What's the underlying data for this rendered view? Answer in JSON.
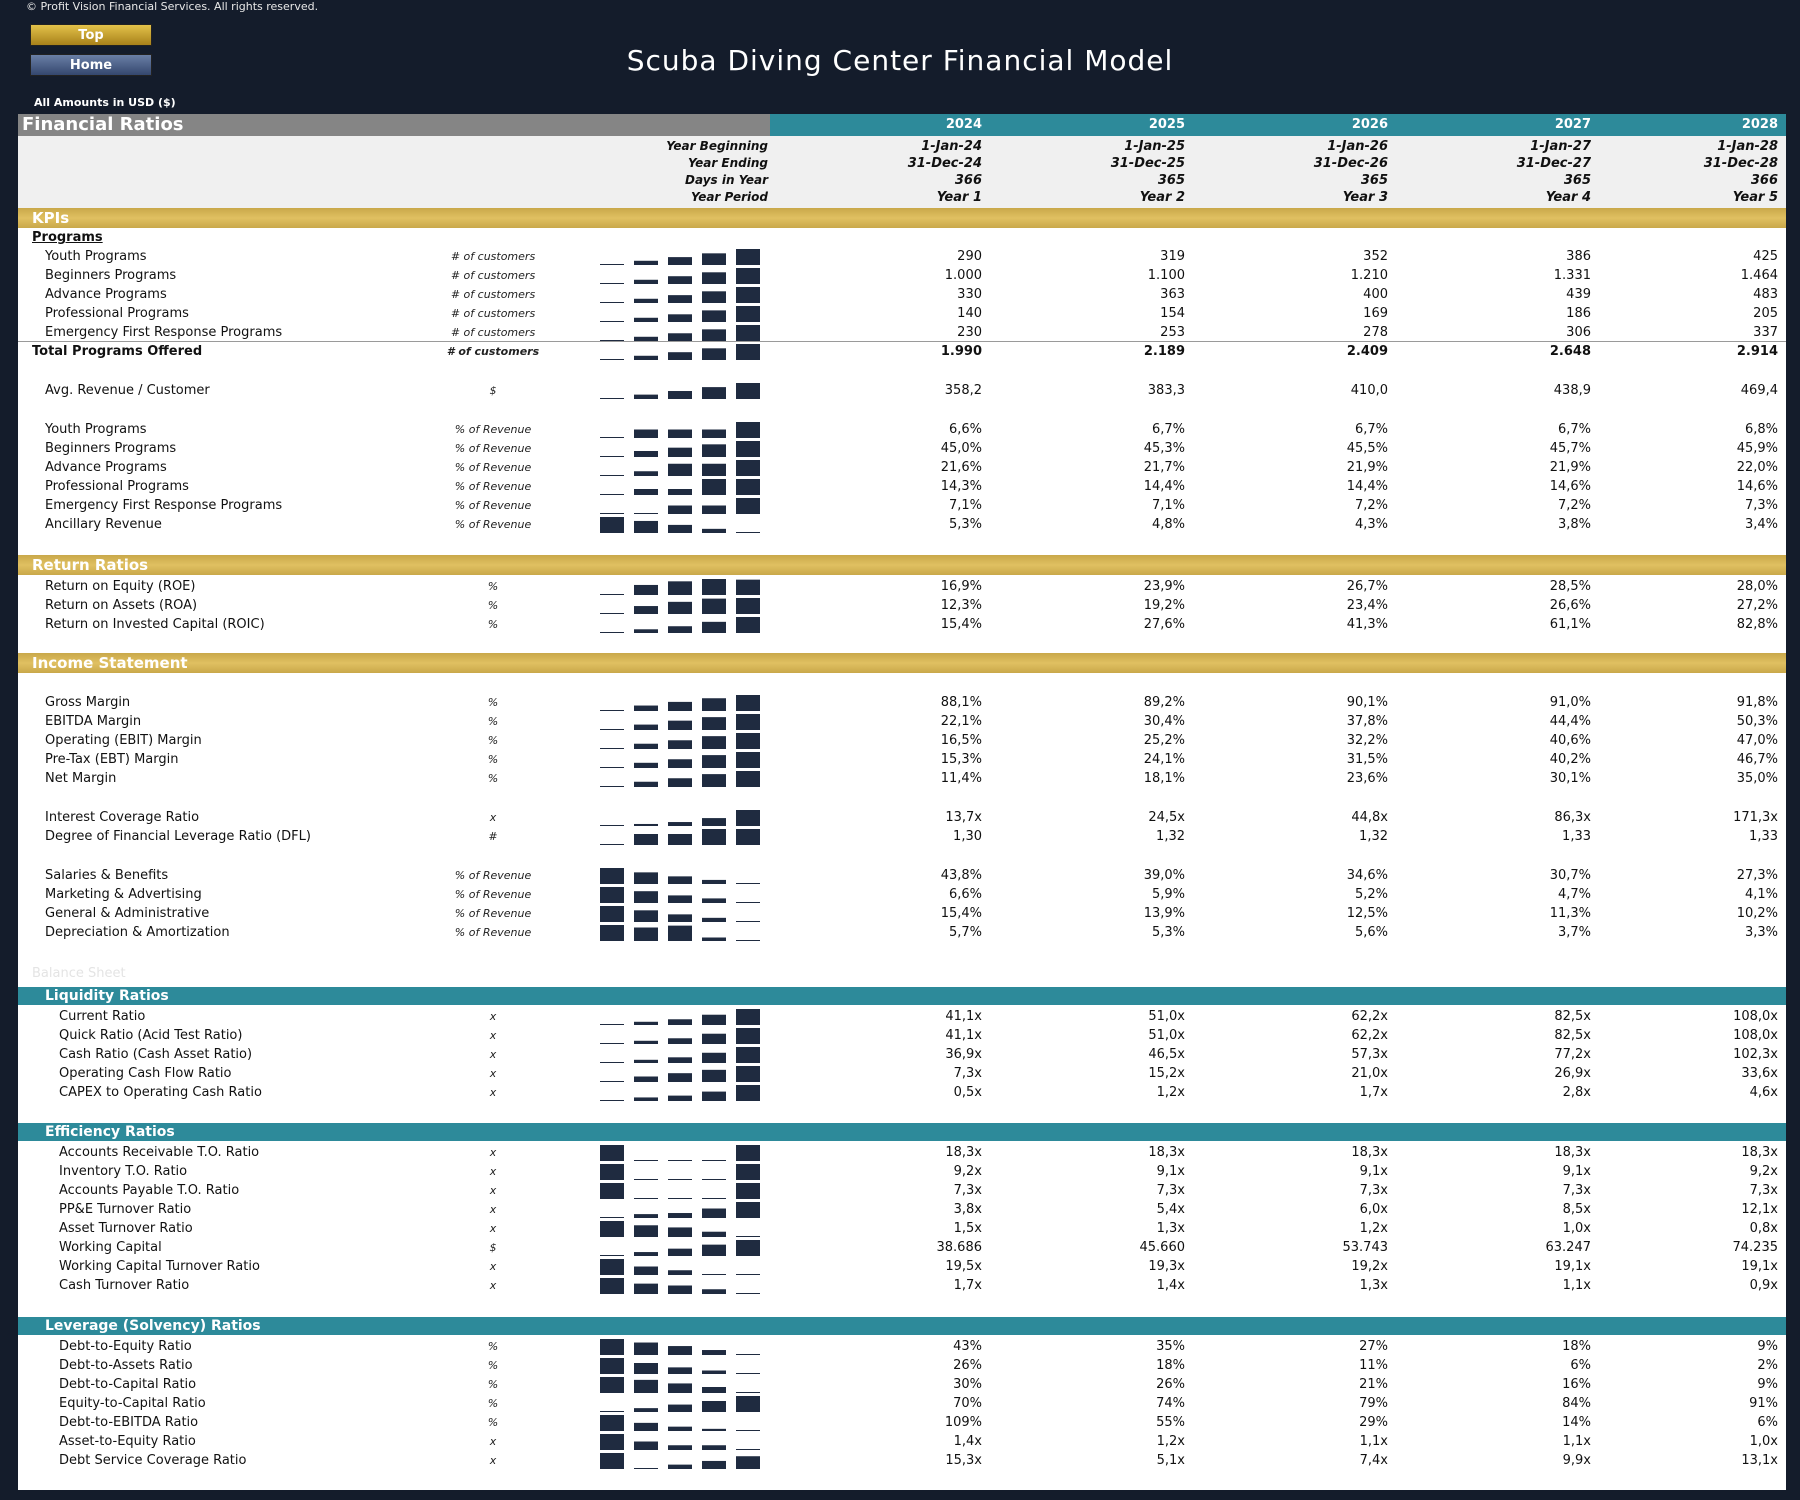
{
  "copyright": "© Profit Vision Financial Services. All rights reserved.",
  "nav": {
    "top": "Top",
    "home": "Home"
  },
  "title": "Scuba Diving Center Financial Model",
  "amounts_label": "All Amounts in  USD ($)",
  "header": {
    "section_title": "Financial Ratios",
    "years": [
      "2024",
      "2025",
      "2026",
      "2027",
      "2028"
    ],
    "rows": [
      {
        "label": "Year Beginning",
        "values": [
          "1-Jan-24",
          "1-Jan-25",
          "1-Jan-26",
          "1-Jan-27",
          "1-Jan-28"
        ]
      },
      {
        "label": "Year Ending",
        "values": [
          "31-Dec-24",
          "31-Dec-25",
          "31-Dec-26",
          "31-Dec-27",
          "31-Dec-28"
        ]
      },
      {
        "label": "Days in Year",
        "values": [
          "366",
          "365",
          "365",
          "365",
          "366"
        ]
      },
      {
        "label": "Year Period",
        "values": [
          "Year 1",
          "Year 2",
          "Year 3",
          "Year 4",
          "Year 5"
        ]
      }
    ]
  },
  "sections": {
    "kpis": "KPIs",
    "programs_heading": "Programs",
    "return_ratios": "Return Ratios",
    "income_statement": "Income Statement",
    "balance_sheet": "Balance Sheet",
    "liquidity": "Liquidity Ratios",
    "efficiency": "Efficiency Ratios",
    "leverage": "Leverage (Solvency) Ratios"
  },
  "rows": [
    {
      "label": "Youth Programs",
      "unit": "# of customers",
      "values": [
        "290",
        "319",
        "352",
        "386",
        "425"
      ],
      "spark": [
        290,
        319,
        352,
        386,
        425
      ]
    },
    {
      "label": "Beginners Programs",
      "unit": "# of customers",
      "values": [
        "1.000",
        "1.100",
        "1.210",
        "1.331",
        "1.464"
      ],
      "spark": [
        1000,
        1100,
        1210,
        1331,
        1464
      ]
    },
    {
      "label": "Advance Programs",
      "unit": "# of customers",
      "values": [
        "330",
        "363",
        "400",
        "439",
        "483"
      ],
      "spark": [
        330,
        363,
        400,
        439,
        483
      ]
    },
    {
      "label": "Professional Programs",
      "unit": "# of customers",
      "values": [
        "140",
        "154",
        "169",
        "186",
        "205"
      ],
      "spark": [
        140,
        154,
        169,
        186,
        205
      ]
    },
    {
      "label": "Emergency First Response Programs",
      "unit": "# of customers",
      "values": [
        "230",
        "253",
        "278",
        "306",
        "337"
      ],
      "spark": [
        230,
        253,
        278,
        306,
        337
      ]
    },
    {
      "label": "Total Programs Offered",
      "unit": "# of customers",
      "values": [
        "1.990",
        "2.189",
        "2.409",
        "2.648",
        "2.914"
      ],
      "spark": [
        1990,
        2189,
        2409,
        2648,
        2914
      ]
    },
    {
      "label": "Avg. Revenue / Customer",
      "unit": "$",
      "values": [
        "358,2",
        "383,3",
        "410,0",
        "438,9",
        "469,4"
      ],
      "spark": [
        358.2,
        383.3,
        410.0,
        438.9,
        469.4
      ]
    },
    {
      "label": "Youth Programs",
      "unit": "% of Revenue",
      "values": [
        "6,6%",
        "6,7%",
        "6,7%",
        "6,7%",
        "6,8%"
      ],
      "spark": [
        6.6,
        6.7,
        6.7,
        6.7,
        6.8
      ]
    },
    {
      "label": "Beginners Programs",
      "unit": "% of Revenue",
      "values": [
        "45,0%",
        "45,3%",
        "45,5%",
        "45,7%",
        "45,9%"
      ],
      "spark": [
        45.0,
        45.3,
        45.5,
        45.7,
        45.9
      ]
    },
    {
      "label": "Advance Programs",
      "unit": "% of Revenue",
      "values": [
        "21,6%",
        "21,7%",
        "21,9%",
        "21,9%",
        "22,0%"
      ],
      "spark": [
        21.6,
        21.7,
        21.9,
        21.9,
        22.0
      ]
    },
    {
      "label": "Professional Programs",
      "unit": "% of Revenue",
      "values": [
        "14,3%",
        "14,4%",
        "14,4%",
        "14,6%",
        "14,6%"
      ],
      "spark": [
        14.3,
        14.4,
        14.4,
        14.6,
        14.6
      ]
    },
    {
      "label": "Emergency First Response Programs",
      "unit": "% of Revenue",
      "values": [
        "7,1%",
        "7,1%",
        "7,2%",
        "7,2%",
        "7,3%"
      ],
      "spark": [
        7.1,
        7.1,
        7.2,
        7.2,
        7.3
      ]
    },
    {
      "label": "Ancillary Revenue",
      "unit": "% of Revenue",
      "values": [
        "5,3%",
        "4,8%",
        "4,3%",
        "3,8%",
        "3,4%"
      ],
      "spark": [
        5.3,
        4.8,
        4.3,
        3.8,
        3.4
      ]
    },
    {
      "label": "Return on Equity (ROE)",
      "unit": "%",
      "values": [
        "16,9%",
        "23,9%",
        "26,7%",
        "28,5%",
        "28,0%"
      ],
      "spark": [
        16.9,
        23.9,
        26.7,
        28.5,
        28.0
      ]
    },
    {
      "label": "Return on Assets (ROA)",
      "unit": "%",
      "values": [
        "12,3%",
        "19,2%",
        "23,4%",
        "26,6%",
        "27,2%"
      ],
      "spark": [
        12.3,
        19.2,
        23.4,
        26.6,
        27.2
      ]
    },
    {
      "label": "Return on Invested Capital (ROIC)",
      "unit": "%",
      "values": [
        "15,4%",
        "27,6%",
        "41,3%",
        "61,1%",
        "82,8%"
      ],
      "spark": [
        15.4,
        27.6,
        41.3,
        61.1,
        82.8
      ]
    },
    {
      "label": "Gross Margin",
      "unit": "%",
      "values": [
        "88,1%",
        "89,2%",
        "90,1%",
        "91,0%",
        "91,8%"
      ],
      "spark": [
        88.1,
        89.2,
        90.1,
        91.0,
        91.8
      ]
    },
    {
      "label": "EBITDA Margin",
      "unit": "%",
      "values": [
        "22,1%",
        "30,4%",
        "37,8%",
        "44,4%",
        "50,3%"
      ],
      "spark": [
        22.1,
        30.4,
        37.8,
        44.4,
        50.3
      ]
    },
    {
      "label": "Operating (EBIT) Margin",
      "unit": "%",
      "values": [
        "16,5%",
        "25,2%",
        "32,2%",
        "40,6%",
        "47,0%"
      ],
      "spark": [
        16.5,
        25.2,
        32.2,
        40.6,
        47.0
      ]
    },
    {
      "label": "Pre-Tax (EBT) Margin",
      "unit": "%",
      "values": [
        "15,3%",
        "24,1%",
        "31,5%",
        "40,2%",
        "46,7%"
      ],
      "spark": [
        15.3,
        24.1,
        31.5,
        40.2,
        46.7
      ]
    },
    {
      "label": "Net Margin",
      "unit": "%",
      "values": [
        "11,4%",
        "18,1%",
        "23,6%",
        "30,1%",
        "35,0%"
      ],
      "spark": [
        11.4,
        18.1,
        23.6,
        30.1,
        35.0
      ]
    },
    {
      "label": "Interest Coverage Ratio",
      "unit": "x",
      "values": [
        "13,7x",
        "24,5x",
        "44,8x",
        "86,3x",
        "171,3x"
      ],
      "spark": [
        13.7,
        24.5,
        44.8,
        86.3,
        171.3
      ]
    },
    {
      "label": "Degree of Financial Leverage Ratio (DFL)",
      "unit": "#",
      "values": [
        "1,30",
        "1,32",
        "1,32",
        "1,33",
        "1,33"
      ],
      "spark": [
        1.3,
        1.32,
        1.32,
        1.33,
        1.33
      ]
    },
    {
      "label": "Salaries & Benefits",
      "unit": "% of Revenue",
      "values": [
        "43,8%",
        "39,0%",
        "34,6%",
        "30,7%",
        "27,3%"
      ],
      "spark": [
        43.8,
        39.0,
        34.6,
        30.7,
        27.3
      ]
    },
    {
      "label": "Marketing & Advertising",
      "unit": "% of Revenue",
      "values": [
        "6,6%",
        "5,9%",
        "5,2%",
        "4,7%",
        "4,1%"
      ],
      "spark": [
        6.6,
        5.9,
        5.2,
        4.7,
        4.1
      ]
    },
    {
      "label": "General & Administrative",
      "unit": "% of Revenue",
      "values": [
        "15,4%",
        "13,9%",
        "12,5%",
        "11,3%",
        "10,2%"
      ],
      "spark": [
        15.4,
        13.9,
        12.5,
        11.3,
        10.2
      ]
    },
    {
      "label": "Depreciation & Amortization",
      "unit": "% of Revenue",
      "values": [
        "5,7%",
        "5,3%",
        "5,6%",
        "3,7%",
        "3,3%"
      ],
      "spark": [
        5.7,
        5.3,
        5.6,
        3.7,
        3.3
      ]
    },
    {
      "label": "Current Ratio",
      "unit": "x",
      "values": [
        "41,1x",
        "51,0x",
        "62,2x",
        "82,5x",
        "108,0x"
      ],
      "spark": [
        41.1,
        51.0,
        62.2,
        82.5,
        108.0
      ]
    },
    {
      "label": "Quick Ratio (Acid Test Ratio)",
      "unit": "x",
      "values": [
        "41,1x",
        "51,0x",
        "62,2x",
        "82,5x",
        "108,0x"
      ],
      "spark": [
        41.1,
        51.0,
        62.2,
        82.5,
        108.0
      ]
    },
    {
      "label": "Cash Ratio (Cash Asset Ratio)",
      "unit": "x",
      "values": [
        "36,9x",
        "46,5x",
        "57,3x",
        "77,2x",
        "102,3x"
      ],
      "spark": [
        36.9,
        46.5,
        57.3,
        77.2,
        102.3
      ]
    },
    {
      "label": "Operating Cash Flow Ratio",
      "unit": "x",
      "values": [
        "7,3x",
        "15,2x",
        "21,0x",
        "26,9x",
        "33,6x"
      ],
      "spark": [
        7.3,
        15.2,
        21.0,
        26.9,
        33.6
      ]
    },
    {
      "label": "CAPEX to Operating Cash Ratio",
      "unit": "x",
      "values": [
        "0,5x",
        "1,2x",
        "1,7x",
        "2,8x",
        "4,6x"
      ],
      "spark": [
        0.5,
        1.2,
        1.7,
        2.8,
        4.6
      ]
    },
    {
      "label": "Accounts Receivable T.O. Ratio",
      "unit": "x",
      "values": [
        "18,3x",
        "18,3x",
        "18,3x",
        "18,3x",
        "18,3x"
      ],
      "spark": [
        18.31,
        18.3,
        18.3,
        18.3,
        18.31
      ]
    },
    {
      "label": "Inventory T.O. Ratio",
      "unit": "x",
      "values": [
        "9,2x",
        "9,1x",
        "9,1x",
        "9,1x",
        "9,2x"
      ],
      "spark": [
        9.2,
        9.1,
        9.1,
        9.1,
        9.2
      ]
    },
    {
      "label": "Accounts Payable T.O. Ratio",
      "unit": "x",
      "values": [
        "7,3x",
        "7,3x",
        "7,3x",
        "7,3x",
        "7,3x"
      ],
      "spark": [
        7.31,
        7.3,
        7.3,
        7.3,
        7.31
      ]
    },
    {
      "label": "PP&E Turnover Ratio",
      "unit": "x",
      "values": [
        "3,8x",
        "5,4x",
        "6,0x",
        "8,5x",
        "12,1x"
      ],
      "spark": [
        3.8,
        5.4,
        6.0,
        8.5,
        12.1
      ]
    },
    {
      "label": "Asset Turnover Ratio",
      "unit": "x",
      "values": [
        "1,5x",
        "1,3x",
        "1,2x",
        "1,0x",
        "0,8x"
      ],
      "spark": [
        1.5,
        1.3,
        1.2,
        1.0,
        0.8
      ]
    },
    {
      "label": "Working Capital",
      "unit": "$",
      "values": [
        "38.686",
        "45.660",
        "53.743",
        "63.247",
        "74.235"
      ],
      "spark": [
        38686,
        45660,
        53743,
        63247,
        74235
      ]
    },
    {
      "label": "Working Capital Turnover Ratio",
      "unit": "x",
      "values": [
        "19,5x",
        "19,3x",
        "19,2x",
        "19,1x",
        "19,1x"
      ],
      "spark": [
        19.5,
        19.3,
        19.2,
        19.1,
        19.1
      ]
    },
    {
      "label": "Cash Turnover Ratio",
      "unit": "x",
      "values": [
        "1,7x",
        "1,4x",
        "1,3x",
        "1,1x",
        "0,9x"
      ],
      "spark": [
        1.7,
        1.4,
        1.3,
        1.1,
        0.9
      ]
    },
    {
      "label": "Debt-to-Equity Ratio",
      "unit": "%",
      "values": [
        "43%",
        "35%",
        "27%",
        "18%",
        "9%"
      ],
      "spark": [
        43,
        35,
        27,
        18,
        9
      ]
    },
    {
      "label": "Debt-to-Assets Ratio",
      "unit": "%",
      "values": [
        "26%",
        "18%",
        "11%",
        "6%",
        "2%"
      ],
      "spark": [
        26,
        18,
        11,
        6,
        2
      ]
    },
    {
      "label": "Debt-to-Capital Ratio",
      "unit": "%",
      "values": [
        "30%",
        "26%",
        "21%",
        "16%",
        "9%"
      ],
      "spark": [
        30,
        26,
        21,
        16,
        9
      ]
    },
    {
      "label": "Equity-to-Capital Ratio",
      "unit": "%",
      "values": [
        "70%",
        "74%",
        "79%",
        "84%",
        "91%"
      ],
      "spark": [
        70,
        74,
        79,
        84,
        91
      ]
    },
    {
      "label": "Debt-to-EBITDA Ratio",
      "unit": "%",
      "values": [
        "109%",
        "55%",
        "29%",
        "14%",
        "6%"
      ],
      "spark": [
        109,
        55,
        29,
        14,
        6
      ]
    },
    {
      "label": "Asset-to-Equity Ratio",
      "unit": "x",
      "values": [
        "1,4x",
        "1,2x",
        "1,1x",
        "1,1x",
        "1,0x"
      ],
      "spark": [
        1.4,
        1.2,
        1.1,
        1.1,
        1.0
      ]
    },
    {
      "label": "Debt Service Coverage Ratio",
      "unit": "x",
      "values": [
        "15,3x",
        "5,1x",
        "7,4x",
        "9,9x",
        "13,1x"
      ],
      "spark": [
        15.3,
        5.1,
        7.4,
        9.9,
        13.1
      ]
    }
  ],
  "colors": {
    "bar": "#1f2b40",
    "gold": "#d4b456",
    "teal": "#2d8a9a",
    "background": "#141c2b"
  }
}
